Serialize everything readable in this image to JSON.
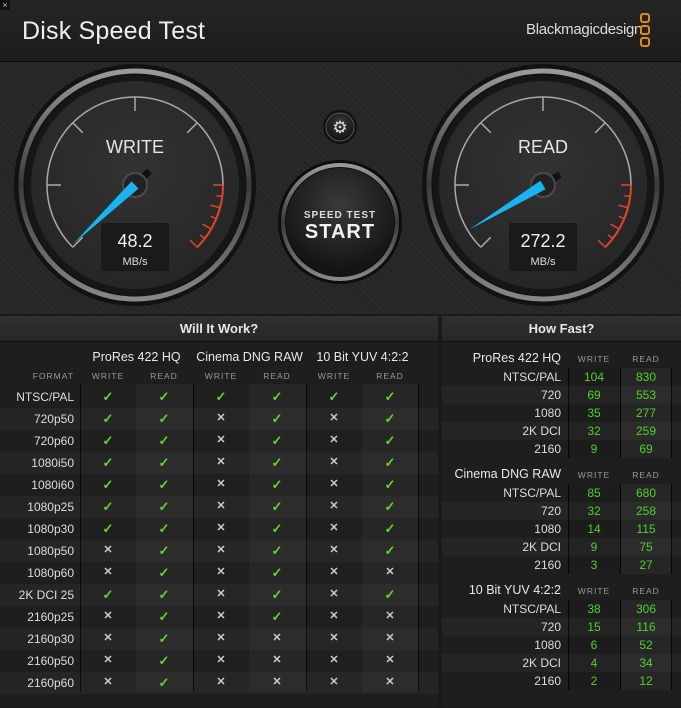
{
  "window": {
    "close_label": "×",
    "title": "Disk Speed Test",
    "brand": "Blackmagicdesign"
  },
  "gauges": {
    "write": {
      "label": "WRITE",
      "value": "48.2",
      "unit": "MB/s"
    },
    "read": {
      "label": "READ",
      "value": "272.2",
      "unit": "MB/s"
    }
  },
  "start_button": {
    "line1": "SPEED TEST",
    "line2": "START"
  },
  "settings_icon": "gear-icon",
  "colors": {
    "needle": "#1ab3f2",
    "ok": "#62d72a",
    "number": "#4fd12c",
    "logo": "#d98a1a",
    "redline": "#e0442c"
  },
  "will_it_work": {
    "title": "Will It Work?",
    "format_label": "FORMAT",
    "groups": [
      "ProRes 422 HQ",
      "Cinema DNG RAW",
      "10 Bit YUV 4:2:2"
    ],
    "sub_write": "WRITE",
    "sub_read": "READ",
    "rows": [
      {
        "name": "NTSC/PAL",
        "values": [
          true,
          true,
          true,
          true,
          true,
          true
        ]
      },
      {
        "name": "720p50",
        "values": [
          true,
          true,
          false,
          true,
          false,
          true
        ]
      },
      {
        "name": "720p60",
        "values": [
          true,
          true,
          false,
          true,
          false,
          true
        ]
      },
      {
        "name": "1080i50",
        "values": [
          true,
          true,
          false,
          true,
          false,
          true
        ]
      },
      {
        "name": "1080i60",
        "values": [
          true,
          true,
          false,
          true,
          false,
          true
        ]
      },
      {
        "name": "1080p25",
        "values": [
          true,
          true,
          false,
          true,
          false,
          true
        ]
      },
      {
        "name": "1080p30",
        "values": [
          true,
          true,
          false,
          true,
          false,
          true
        ]
      },
      {
        "name": "1080p50",
        "values": [
          false,
          true,
          false,
          true,
          false,
          true
        ]
      },
      {
        "name": "1080p60",
        "values": [
          false,
          true,
          false,
          true,
          false,
          false
        ]
      },
      {
        "name": "2K DCI 25",
        "values": [
          true,
          true,
          false,
          true,
          false,
          true
        ]
      },
      {
        "name": "2160p25",
        "values": [
          false,
          true,
          false,
          true,
          false,
          false
        ]
      },
      {
        "name": "2160p30",
        "values": [
          false,
          true,
          false,
          false,
          false,
          false
        ]
      },
      {
        "name": "2160p50",
        "values": [
          false,
          true,
          false,
          false,
          false,
          false
        ]
      },
      {
        "name": "2160p60",
        "values": [
          false,
          true,
          false,
          false,
          false,
          false
        ]
      }
    ]
  },
  "how_fast": {
    "title": "How Fast?",
    "sub_write": "WRITE",
    "sub_read": "READ",
    "sections": [
      {
        "name": "ProRes 422 HQ",
        "rows": [
          {
            "name": "NTSC/PAL",
            "write": "104",
            "read": "830"
          },
          {
            "name": "720",
            "write": "69",
            "read": "553"
          },
          {
            "name": "1080",
            "write": "35",
            "read": "277"
          },
          {
            "name": "2K DCI",
            "write": "32",
            "read": "259"
          },
          {
            "name": "2160",
            "write": "9",
            "read": "69"
          }
        ]
      },
      {
        "name": "Cinema DNG RAW",
        "rows": [
          {
            "name": "NTSC/PAL",
            "write": "85",
            "read": "680"
          },
          {
            "name": "720",
            "write": "32",
            "read": "258"
          },
          {
            "name": "1080",
            "write": "14",
            "read": "115"
          },
          {
            "name": "2K DCI",
            "write": "9",
            "read": "75"
          },
          {
            "name": "2160",
            "write": "3",
            "read": "27"
          }
        ]
      },
      {
        "name": "10 Bit YUV 4:2:2",
        "rows": [
          {
            "name": "NTSC/PAL",
            "write": "38",
            "read": "306"
          },
          {
            "name": "720",
            "write": "15",
            "read": "116"
          },
          {
            "name": "1080",
            "write": "6",
            "read": "52"
          },
          {
            "name": "2K DCI",
            "write": "4",
            "read": "34"
          },
          {
            "name": "2160",
            "write": "2",
            "read": "12"
          }
        ]
      }
    ]
  }
}
